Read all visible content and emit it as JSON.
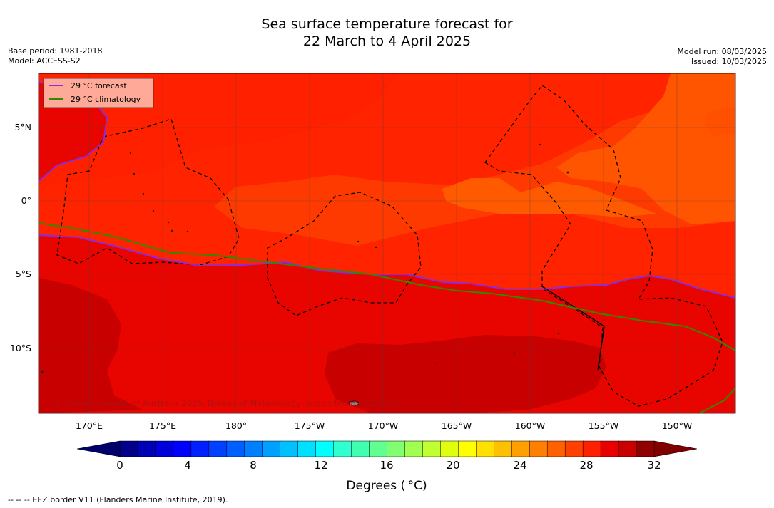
{
  "header": {
    "title_line1": "Sea surface temperature forecast for",
    "title_line2": "22 March to 4 April 2025",
    "base_period": "Base period: 1981-2018",
    "model": "Model: ACCESS-S2",
    "model_run": "Model run: 08/03/2025",
    "issued": "Issued: 10/03/2025"
  },
  "legend": {
    "forecast_label": "29 °C  forecast",
    "climatology_label": "29 °C  climatology",
    "forecast_color": "#8a2be2",
    "climatology_color": "#2e8b00"
  },
  "map": {
    "lat_labels": [
      "5°N",
      "0°",
      "5°S",
      "10°S"
    ],
    "lon_labels": [
      "170°E",
      "175°E",
      "180°",
      "175°W",
      "170°W",
      "165°W",
      "160°W",
      "155°W",
      "150°W"
    ],
    "copyright": "© Commonwealth of Australia 2025, Bureau of Meteorology, supported by COSPPac",
    "eez_color": "#000000"
  },
  "colorbar": {
    "ticks": [
      "0",
      "4",
      "8",
      "12",
      "16",
      "20",
      "24",
      "28",
      "32"
    ],
    "label": "Degrees ( °C)",
    "colors": [
      "#00008b",
      "#0000b4",
      "#0000d9",
      "#0000ff",
      "#0020ff",
      "#0040ff",
      "#0060ff",
      "#0080ff",
      "#00a0ff",
      "#00c0ff",
      "#00e0ff",
      "#00ffff",
      "#30ffd0",
      "#40ffb0",
      "#60ff90",
      "#80ff70",
      "#a0ff50",
      "#c0ff30",
      "#e0ff10",
      "#ffff00",
      "#ffe000",
      "#ffc000",
      "#ffa000",
      "#ff8000",
      "#ff6000",
      "#ff4000",
      "#ff2000",
      "#e80000",
      "#c80000",
      "#900000"
    ],
    "under_color": "#00006b",
    "over_color": "#800000"
  },
  "footer": {
    "eez_note": "--  --  -- EEZ border V11 (Flanders Marine Institute, 2019)."
  }
}
